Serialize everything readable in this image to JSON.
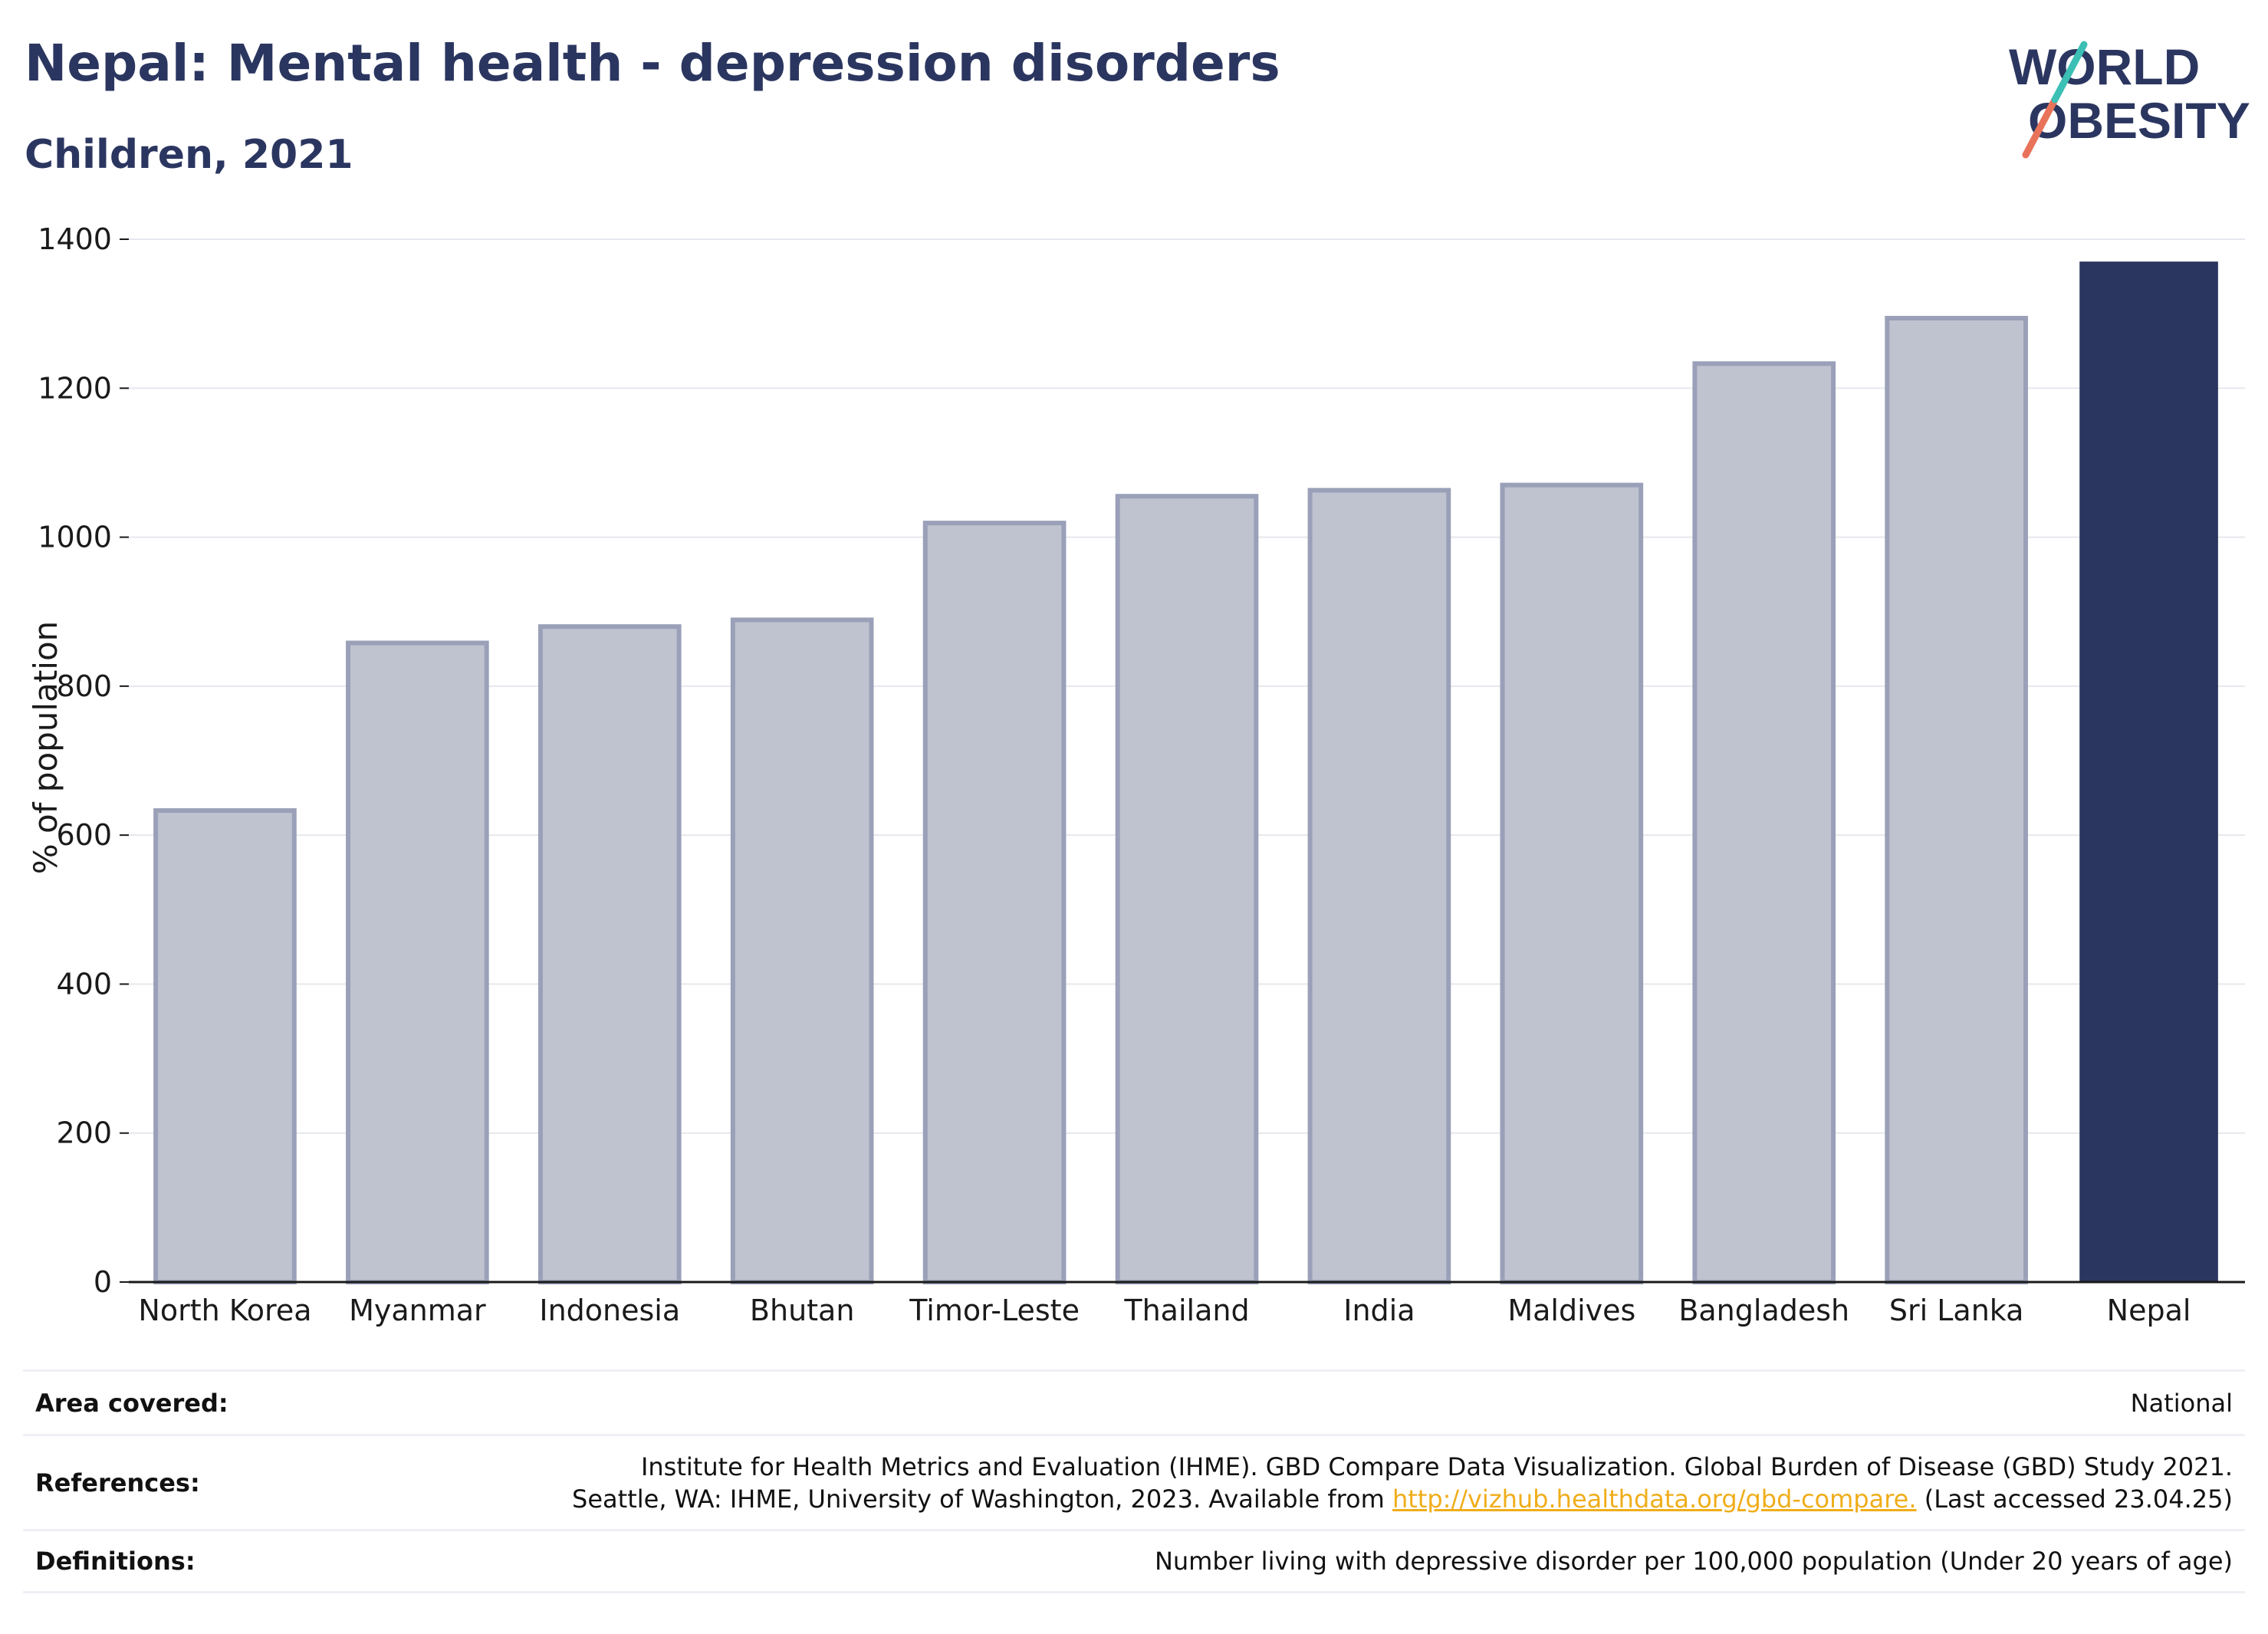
{
  "header": {
    "title": "Nepal: Mental health - depression disorders",
    "subtitle": "Children, 2021"
  },
  "logo": {
    "line1": "WORLD",
    "line2": "OBESITY"
  },
  "chart_data": {
    "type": "bar",
    "ylabel": "% of population",
    "xlabel": "",
    "ylim": [
      0,
      1400
    ],
    "yticks": [
      0,
      200,
      400,
      600,
      800,
      1000,
      1200,
      1400
    ],
    "categories": [
      "North Korea",
      "Myanmar",
      "Indonesia",
      "Bhutan",
      "Timor-Leste",
      "Thailand",
      "India",
      "Maldives",
      "Bangladesh",
      "Sri Lanka",
      "Nepal"
    ],
    "values": [
      633,
      858,
      880,
      889,
      1019,
      1055,
      1063,
      1070,
      1233,
      1294,
      1370
    ],
    "highlight": "Nepal",
    "colors": {
      "bar": "#bfc3d0",
      "bar_edge": "#9aa0b8",
      "highlight": "#2b3660",
      "grid": "#e6e8ee",
      "axis": "#1a1a1a"
    },
    "grid": true
  },
  "info": {
    "area_label": "Area covered:",
    "area_value": "National",
    "references_label": "References:",
    "references_line1": "Institute for Health Metrics and Evaluation (IHME). GBD Compare Data Visualization. Global Burden of Disease (GBD) Study 2021.",
    "references_line2_pre": "Seattle, WA: IHME, University of Washington, 2023. Available from ",
    "references_link": "http://vizhub.healthdata.org/gbd-compare.",
    "references_line2_post": " (Last accessed 23.04.25)",
    "definitions_label": "Definitions:",
    "definitions_value": "Number living with depressive disorder per 100,000 population (Under 20 years of age)"
  }
}
